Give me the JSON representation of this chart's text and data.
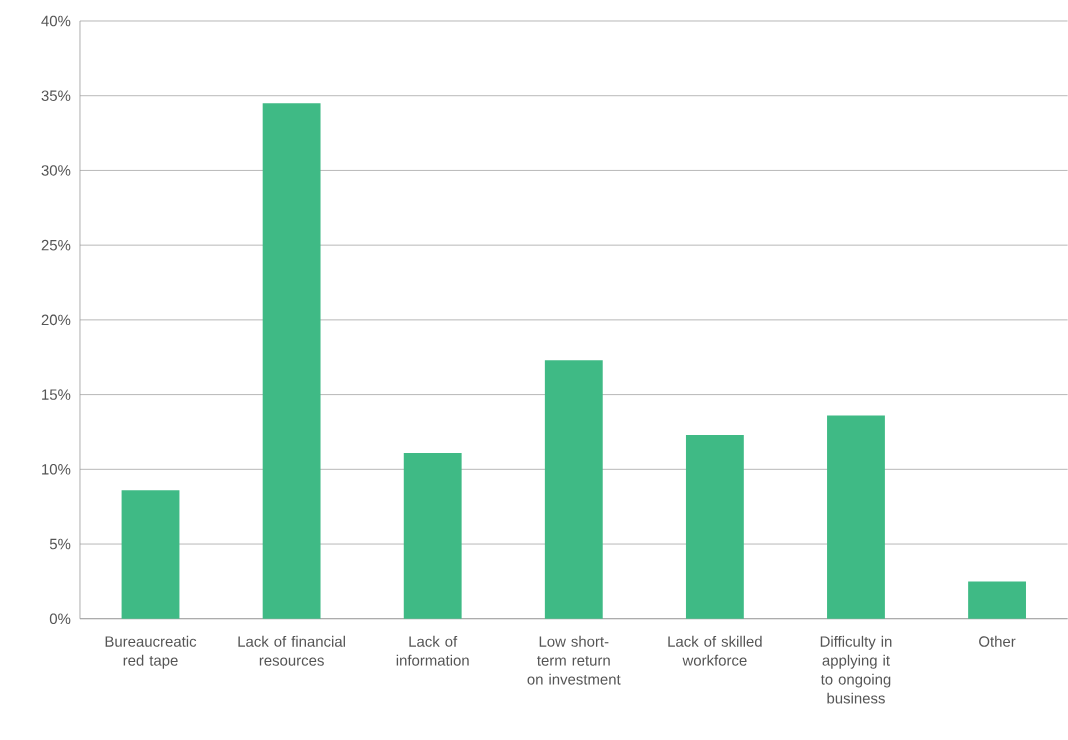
{
  "chart_data": {
    "type": "bar",
    "categories": [
      "Bureaucreatic red tape",
      "Lack of financial resources",
      "Lack of information",
      "Low short-term return on investment",
      "Lack of skilled workforce",
      "Difficulty in applying it to ongoing business",
      "Other"
    ],
    "values": [
      8.6,
      34.5,
      11.1,
      17.3,
      12.3,
      13.6,
      2.5
    ],
    "color": "#3fba85",
    "ylim": [
      0,
      40
    ],
    "yticks": [
      {
        "value": 0,
        "label": "0%"
      },
      {
        "value": 5,
        "label": "5%"
      },
      {
        "value": 10,
        "label": "10%"
      },
      {
        "value": 15,
        "label": "15%"
      },
      {
        "value": 20,
        "label": "20%"
      },
      {
        "value": 25,
        "label": "25%"
      },
      {
        "value": 30,
        "label": "30%"
      },
      {
        "value": 35,
        "label": "35%"
      },
      {
        "value": 40,
        "label": "40%"
      }
    ],
    "grid": "y"
  }
}
